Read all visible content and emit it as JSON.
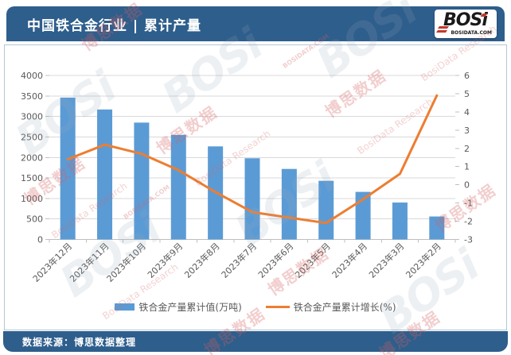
{
  "header": {
    "title": "中国铁合金行业 | 累计产量",
    "logo": {
      "brand": "BOSi",
      "domain": "BOSIDATA.COM"
    }
  },
  "footer": {
    "source": "数据来源：博思数据整理"
  },
  "watermark": {
    "brand": "BOSi",
    "cn": "博思数据",
    "en": "BosiData Research",
    "domain": "BOSIDATA.COM"
  },
  "colors": {
    "header_bg": "#2E5E8C",
    "bar": "#5B9BD5",
    "line": "#ED7D31",
    "grid": "#D9D9D9",
    "axis_line": "#BFBFBF",
    "axis_text": "#595959",
    "logo_red": "#C0392B"
  },
  "chart_data": {
    "type": "bar",
    "combo": "bar+line dual-axis",
    "title": "中国铁合金行业 | 累计产量",
    "categories": [
      "2023年12月",
      "2023年11月",
      "2023年10月",
      "2023年9月",
      "2023年8月",
      "2023年7月",
      "2023年6月",
      "2023年5月",
      "2023年4月",
      "2023年3月",
      "2023年2月"
    ],
    "series": [
      {
        "name": "铁合金产量累计值(万吨)",
        "type": "bar",
        "axis": "left",
        "values": [
          3460,
          3170,
          2850,
          2550,
          2270,
          1980,
          1720,
          1430,
          1160,
          900,
          560
        ]
      },
      {
        "name": "铁合金产量累计增长(%)",
        "type": "line",
        "axis": "right",
        "values": [
          1.4,
          2.2,
          1.7,
          0.8,
          -0.4,
          -1.5,
          -1.8,
          -2.1,
          -0.8,
          0.6,
          4.9
        ]
      }
    ],
    "left_axis": {
      "min": 0,
      "max": 4000,
      "step": 500,
      "ticks": [
        "4000",
        "3500",
        "3000",
        "2500",
        "2000",
        "1500",
        "1000",
        "500",
        "0"
      ]
    },
    "right_axis": {
      "min": -3,
      "max": 6,
      "step": 1,
      "ticks": [
        "6",
        "5",
        "4",
        "3",
        "2",
        "1",
        "0",
        "-1",
        "-2",
        "-3"
      ]
    },
    "grid": true,
    "legend_position": "bottom",
    "x_label_rotation": -45
  }
}
